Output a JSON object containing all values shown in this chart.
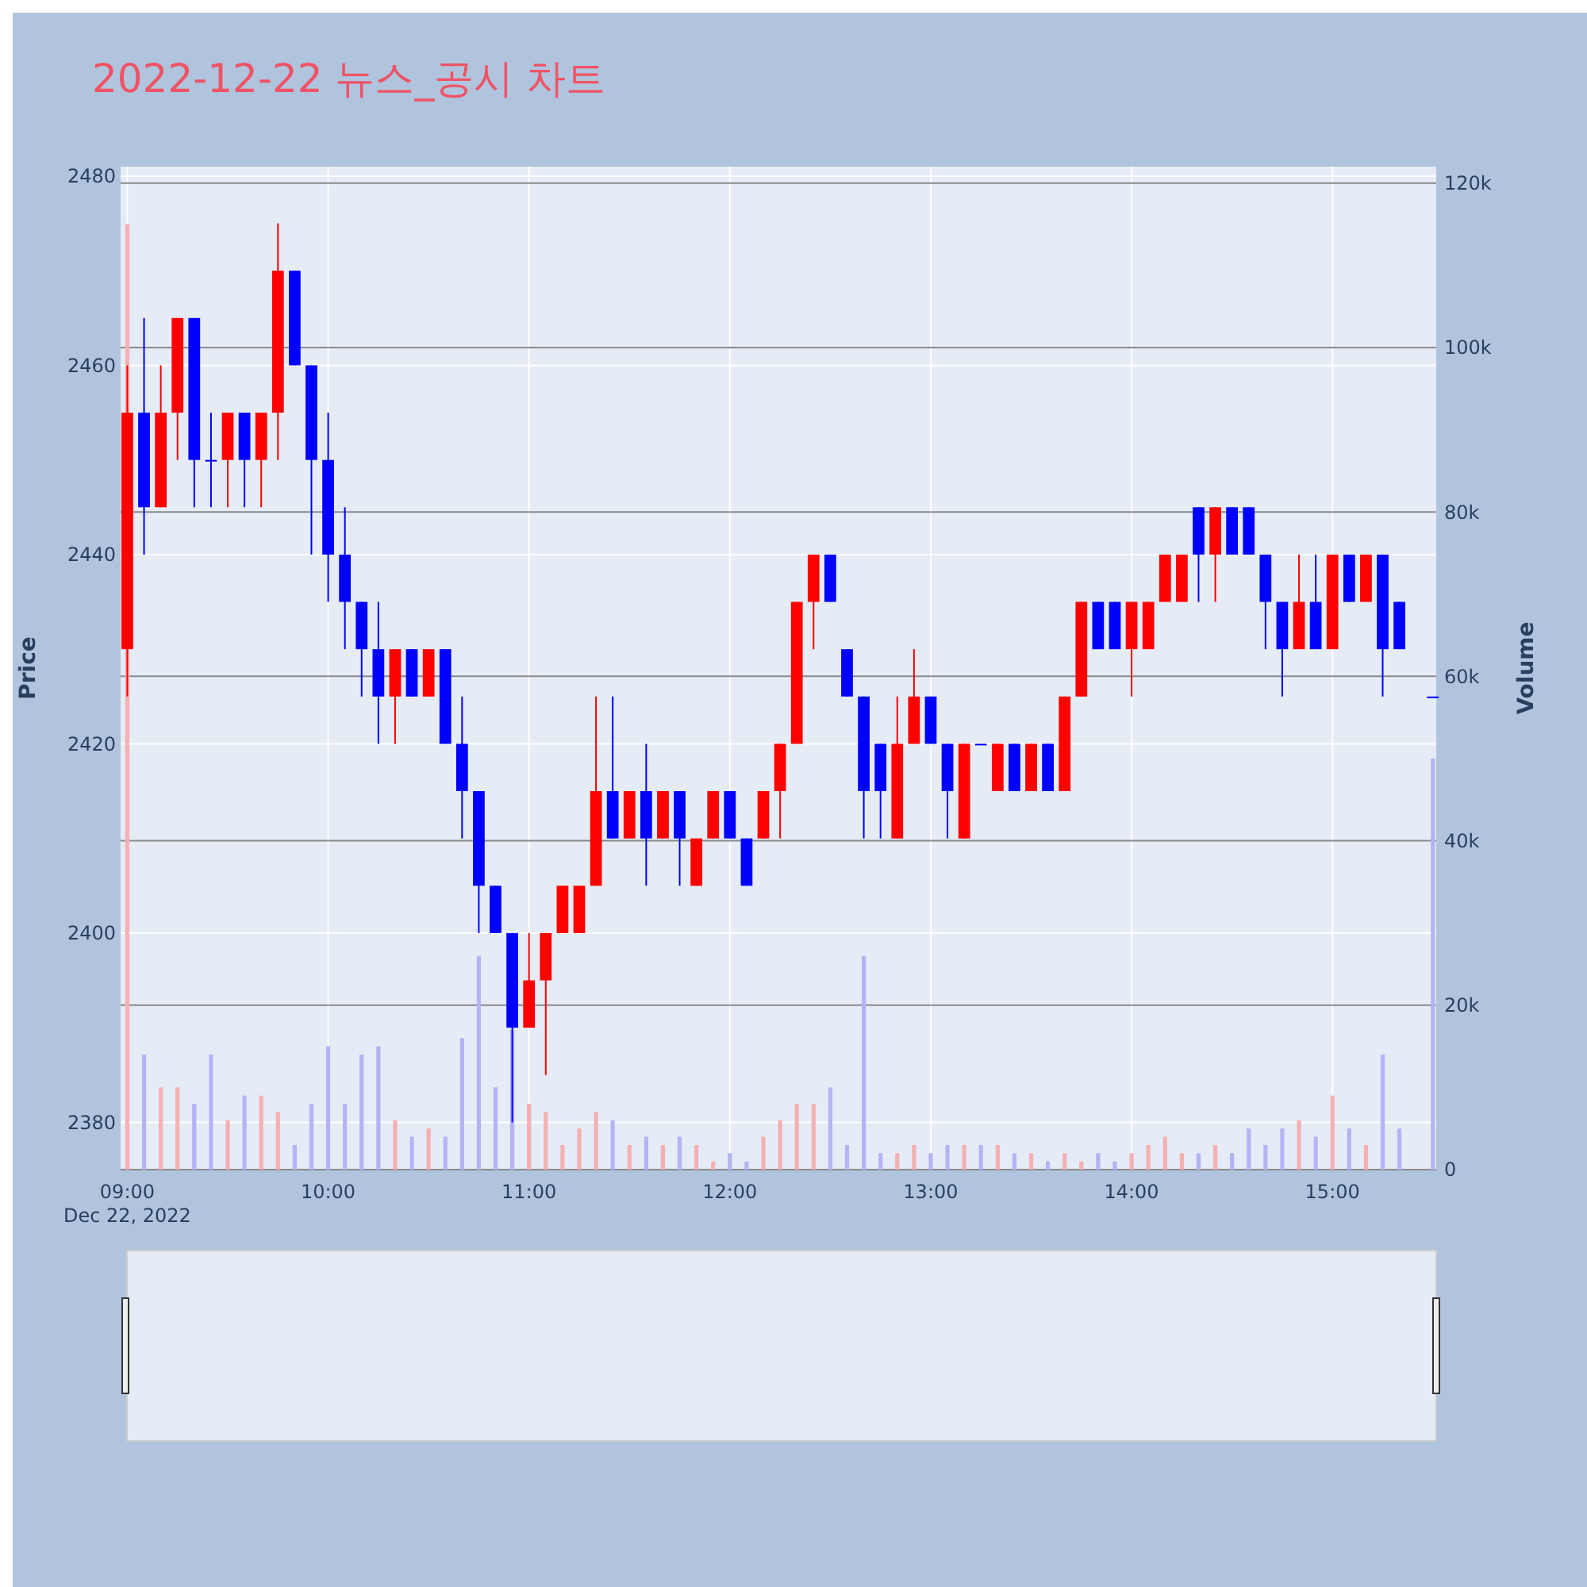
{
  "chart_data": {
    "type": "candlestick",
    "title": "2022-12-22 뉴스_공시 차트",
    "ylabel": "Price",
    "y2label": "Volume",
    "x": [
      "2022-12-22T09:00",
      "2022-12-22T09:05",
      "2022-12-22T09:10",
      "2022-12-22T09:15",
      "2022-12-22T09:20",
      "2022-12-22T09:25",
      "2022-12-22T09:30",
      "2022-12-22T09:35",
      "2022-12-22T09:40",
      "2022-12-22T09:45",
      "2022-12-22T09:50",
      "2022-12-22T09:55",
      "2022-12-22T10:00",
      "2022-12-22T10:05",
      "2022-12-22T10:10",
      "2022-12-22T10:15",
      "2022-12-22T10:20",
      "2022-12-22T10:25",
      "2022-12-22T10:30",
      "2022-12-22T10:35",
      "2022-12-22T10:40",
      "2022-12-22T10:45",
      "2022-12-22T10:50",
      "2022-12-22T10:55",
      "2022-12-22T11:00",
      "2022-12-22T11:05",
      "2022-12-22T11:10",
      "2022-12-22T11:15",
      "2022-12-22T11:20",
      "2022-12-22T11:25",
      "2022-12-22T11:30",
      "2022-12-22T11:35",
      "2022-12-22T11:40",
      "2022-12-22T11:45",
      "2022-12-22T11:50",
      "2022-12-22T11:55",
      "2022-12-22T12:00",
      "2022-12-22T12:05",
      "2022-12-22T12:10",
      "2022-12-22T12:15",
      "2022-12-22T12:20",
      "2022-12-22T12:25",
      "2022-12-22T12:30",
      "2022-12-22T12:35",
      "2022-12-22T12:40",
      "2022-12-22T12:45",
      "2022-12-22T12:50",
      "2022-12-22T12:55",
      "2022-12-22T13:00",
      "2022-12-22T13:05",
      "2022-12-22T13:10",
      "2022-12-22T13:15",
      "2022-12-22T13:20",
      "2022-12-22T13:25",
      "2022-12-22T13:30",
      "2022-12-22T13:35",
      "2022-12-22T13:40",
      "2022-12-22T13:45",
      "2022-12-22T13:50",
      "2022-12-22T13:55",
      "2022-12-22T14:00",
      "2022-12-22T14:05",
      "2022-12-22T14:10",
      "2022-12-22T14:15",
      "2022-12-22T14:20",
      "2022-12-22T14:25",
      "2022-12-22T14:30",
      "2022-12-22T14:35",
      "2022-12-22T14:40",
      "2022-12-22T14:45",
      "2022-12-22T14:50",
      "2022-12-22T14:55",
      "2022-12-22T15:00",
      "2022-12-22T15:05",
      "2022-12-22T15:10",
      "2022-12-22T15:15",
      "2022-12-22T15:20",
      "2022-12-22T15:30"
    ],
    "ohlc": [
      [
        2430,
        2460,
        2425,
        2455
      ],
      [
        2455,
        2465,
        2440,
        2445
      ],
      [
        2445,
        2460,
        2445,
        2455
      ],
      [
        2455,
        2465,
        2450,
        2465
      ],
      [
        2465,
        2465,
        2445,
        2450
      ],
      [
        2450,
        2455,
        2445,
        2450
      ],
      [
        2450,
        2455,
        2445,
        2455
      ],
      [
        2455,
        2455,
        2445,
        2450
      ],
      [
        2450,
        2455,
        2445,
        2455
      ],
      [
        2455,
        2475,
        2450,
        2470
      ],
      [
        2470,
        2470,
        2460,
        2460
      ],
      [
        2460,
        2460,
        2440,
        2450
      ],
      [
        2450,
        2455,
        2435,
        2440
      ],
      [
        2440,
        2445,
        2430,
        2435
      ],
      [
        2435,
        2435,
        2425,
        2430
      ],
      [
        2430,
        2435,
        2420,
        2425
      ],
      [
        2425,
        2430,
        2420,
        2430
      ],
      [
        2430,
        2430,
        2425,
        2425
      ],
      [
        2425,
        2430,
        2425,
        2430
      ],
      [
        2430,
        2430,
        2420,
        2420
      ],
      [
        2420,
        2425,
        2410,
        2415
      ],
      [
        2415,
        2415,
        2400,
        2405
      ],
      [
        2405,
        2405,
        2400,
        2400
      ],
      [
        2400,
        2400,
        2380,
        2390
      ],
      [
        2390,
        2400,
        2390,
        2395
      ],
      [
        2395,
        2400,
        2385,
        2400
      ],
      [
        2400,
        2405,
        2400,
        2405
      ],
      [
        2400,
        2405,
        2400,
        2405
      ],
      [
        2405,
        2425,
        2405,
        2415
      ],
      [
        2415,
        2425,
        2410,
        2410
      ],
      [
        2410,
        2415,
        2410,
        2415
      ],
      [
        2415,
        2420,
        2405,
        2410
      ],
      [
        2410,
        2415,
        2410,
        2415
      ],
      [
        2415,
        2415,
        2405,
        2410
      ],
      [
        2405,
        2410,
        2405,
        2410
      ],
      [
        2410,
        2415,
        2410,
        2415
      ],
      [
        2415,
        2415,
        2410,
        2410
      ],
      [
        2410,
        2410,
        2405,
        2405
      ],
      [
        2410,
        2415,
        2410,
        2415
      ],
      [
        2415,
        2420,
        2410,
        2420
      ],
      [
        2420,
        2435,
        2420,
        2435
      ],
      [
        2435,
        2440,
        2430,
        2440
      ],
      [
        2440,
        2440,
        2435,
        2435
      ],
      [
        2430,
        2430,
        2425,
        2425
      ],
      [
        2425,
        2425,
        2410,
        2415
      ],
      [
        2420,
        2420,
        2410,
        2415
      ],
      [
        2410,
        2425,
        2410,
        2420
      ],
      [
        2420,
        2430,
        2420,
        2425
      ],
      [
        2425,
        2425,
        2420,
        2420
      ],
      [
        2420,
        2420,
        2410,
        2415
      ],
      [
        2410,
        2420,
        2410,
        2420
      ],
      [
        2420,
        2420,
        2420,
        2420
      ],
      [
        2415,
        2420,
        2415,
        2420
      ],
      [
        2420,
        2420,
        2415,
        2415
      ],
      [
        2415,
        2420,
        2415,
        2420
      ],
      [
        2420,
        2420,
        2415,
        2415
      ],
      [
        2415,
        2425,
        2415,
        2425
      ],
      [
        2425,
        2435,
        2425,
        2435
      ],
      [
        2435,
        2435,
        2430,
        2430
      ],
      [
        2435,
        2435,
        2430,
        2430
      ],
      [
        2430,
        2435,
        2425,
        2435
      ],
      [
        2430,
        2435,
        2430,
        2435
      ],
      [
        2435,
        2440,
        2435,
        2440
      ],
      [
        2435,
        2440,
        2435,
        2440
      ],
      [
        2445,
        2445,
        2435,
        2440
      ],
      [
        2440,
        2445,
        2435,
        2445
      ],
      [
        2445,
        2445,
        2440,
        2440
      ],
      [
        2445,
        2445,
        2440,
        2440
      ],
      [
        2440,
        2440,
        2430,
        2435
      ],
      [
        2435,
        2435,
        2425,
        2430
      ],
      [
        2430,
        2440,
        2430,
        2435
      ],
      [
        2435,
        2440,
        2430,
        2430
      ],
      [
        2430,
        2440,
        2430,
        2440
      ],
      [
        2440,
        2440,
        2435,
        2435
      ],
      [
        2435,
        2440,
        2435,
        2440
      ],
      [
        2440,
        2440,
        2425,
        2430
      ],
      [
        2435,
        2435,
        2430,
        2430
      ],
      [
        2425,
        2425,
        2425,
        2425
      ]
    ],
    "colors": [
      "#ff0000",
      "#0000ff",
      "#ff0000",
      "#ff0000",
      "#0000ff",
      "#0000ff",
      "#ff0000",
      "#0000ff",
      "#ff0000",
      "#ff0000",
      "#0000ff",
      "#0000ff",
      "#0000ff",
      "#0000ff",
      "#0000ff",
      "#0000ff",
      "#ff0000",
      "#0000ff",
      "#ff0000",
      "#0000ff",
      "#0000ff",
      "#0000ff",
      "#0000ff",
      "#0000ff",
      "#ff0000",
      "#ff0000",
      "#ff0000",
      "#ff0000",
      "#ff0000",
      "#0000ff",
      "#ff0000",
      "#0000ff",
      "#ff0000",
      "#0000ff",
      "#ff0000",
      "#ff0000",
      "#0000ff",
      "#0000ff",
      "#ff0000",
      "#ff0000",
      "#ff0000",
      "#ff0000",
      "#0000ff",
      "#0000ff",
      "#0000ff",
      "#0000ff",
      "#ff0000",
      "#ff0000",
      "#0000ff",
      "#0000ff",
      "#ff0000",
      "#0000ff",
      "#ff0000",
      "#0000ff",
      "#ff0000",
      "#0000ff",
      "#ff0000",
      "#ff0000",
      "#0000ff",
      "#0000ff",
      "#ff0000",
      "#ff0000",
      "#ff0000",
      "#ff0000",
      "#0000ff",
      "#ff0000",
      "#0000ff",
      "#0000ff",
      "#0000ff",
      "#0000ff",
      "#ff0000",
      "#0000ff",
      "#ff0000",
      "#0000ff",
      "#ff0000",
      "#0000ff",
      "#0000ff",
      "#0000ff"
    ],
    "series": [
      {
        "type": "bar",
        "axis": "y2",
        "values": [
          115000,
          14000,
          10000,
          10000,
          8000,
          14000,
          6000,
          9000,
          9000,
          7000,
          3000,
          8000,
          15000,
          8000,
          14000,
          15000,
          6000,
          4000,
          5000,
          4000,
          16000,
          26000,
          10000,
          17000,
          8000,
          7000,
          3000,
          5000,
          7000,
          6000,
          3000,
          4000,
          3000,
          4000,
          3000,
          1000,
          2000,
          1000,
          4000,
          6000,
          8000,
          8000,
          10000,
          3000,
          26000,
          2000,
          2000,
          3000,
          2000,
          3000,
          3000,
          3000,
          3000,
          2000,
          2000,
          1000,
          2000,
          1000,
          2000,
          1000,
          2000,
          3000,
          4000,
          2000,
          2000,
          3000,
          2000,
          5000,
          3000,
          5000,
          6000,
          4000,
          9000,
          5000,
          3000,
          14000,
          5000,
          50000
        ],
        "colors": [
          "#f5b0b4",
          "#b4b4f5",
          "#f5b0b4",
          "#f5b0b4",
          "#b4b4f5",
          "#b4b4f5",
          "#f5b0b4",
          "#b4b4f5",
          "#f5b0b4",
          "#f5b0b4",
          "#b4b4f5",
          "#b4b4f5",
          "#b4b4f5",
          "#b4b4f5",
          "#b4b4f5",
          "#b4b4f5",
          "#f5b0b4",
          "#b4b4f5",
          "#f5b0b4",
          "#b4b4f5",
          "#b4b4f5",
          "#b4b4f5",
          "#b4b4f5",
          "#b4b4f5",
          "#f5b0b4",
          "#f5b0b4",
          "#f5b0b4",
          "#f5b0b4",
          "#f5b0b4",
          "#b4b4f5",
          "#f5b0b4",
          "#b4b4f5",
          "#f5b0b4",
          "#b4b4f5",
          "#f5b0b4",
          "#f5b0b4",
          "#b4b4f5",
          "#b4b4f5",
          "#f5b0b4",
          "#f5b0b4",
          "#f5b0b4",
          "#f5b0b4",
          "#b4b4f5",
          "#b4b4f5",
          "#b4b4f5",
          "#b4b4f5",
          "#f5b0b4",
          "#f5b0b4",
          "#b4b4f5",
          "#b4b4f5",
          "#f5b0b4",
          "#b4b4f5",
          "#f5b0b4",
          "#b4b4f5",
          "#f5b0b4",
          "#b4b4f5",
          "#f5b0b4",
          "#f5b0b4",
          "#b4b4f5",
          "#b4b4f5",
          "#f5b0b4",
          "#f5b0b4",
          "#f5b0b4",
          "#f5b0b4",
          "#b4b4f5",
          "#f5b0b4",
          "#b4b4f5",
          "#b4b4f5",
          "#b4b4f5",
          "#b4b4f5",
          "#f5b0b4",
          "#b4b4f5",
          "#f5b0b4",
          "#b4b4f5",
          "#f5b0b4",
          "#b4b4f5",
          "#b4b4f5",
          "#b4b4f5"
        ]
      }
    ],
    "xlim": [
      "2022-12-22T08:58",
      "2022-12-22T15:31"
    ],
    "xticks": [
      {
        "value": "2022-12-22T09:00",
        "label": "09:00\nDec 22, 2022"
      },
      {
        "value": "2022-12-22T10:00",
        "label": "10:00"
      },
      {
        "value": "2022-12-22T11:00",
        "label": "11:00"
      },
      {
        "value": "2022-12-22T12:00",
        "label": "12:00"
      },
      {
        "value": "2022-12-22T13:00",
        "label": "13:00"
      },
      {
        "value": "2022-12-22T14:00",
        "label": "14:00"
      },
      {
        "value": "2022-12-22T15:00",
        "label": "15:00"
      }
    ],
    "ylim": [
      2375,
      2481
    ],
    "yticks": [
      2380,
      2400,
      2420,
      2440,
      2460,
      2480
    ],
    "y2lim": [
      0,
      122000
    ],
    "y2ticks": [
      0,
      {
        "value": 20000,
        "label": "20k"
      },
      {
        "value": 40000,
        "label": "40k"
      },
      {
        "value": 60000,
        "label": "60k"
      },
      {
        "value": 80000,
        "label": "80k"
      },
      {
        "value": 100000,
        "label": "100k"
      },
      {
        "value": 120000,
        "label": "120k"
      }
    ],
    "grid": true
  }
}
